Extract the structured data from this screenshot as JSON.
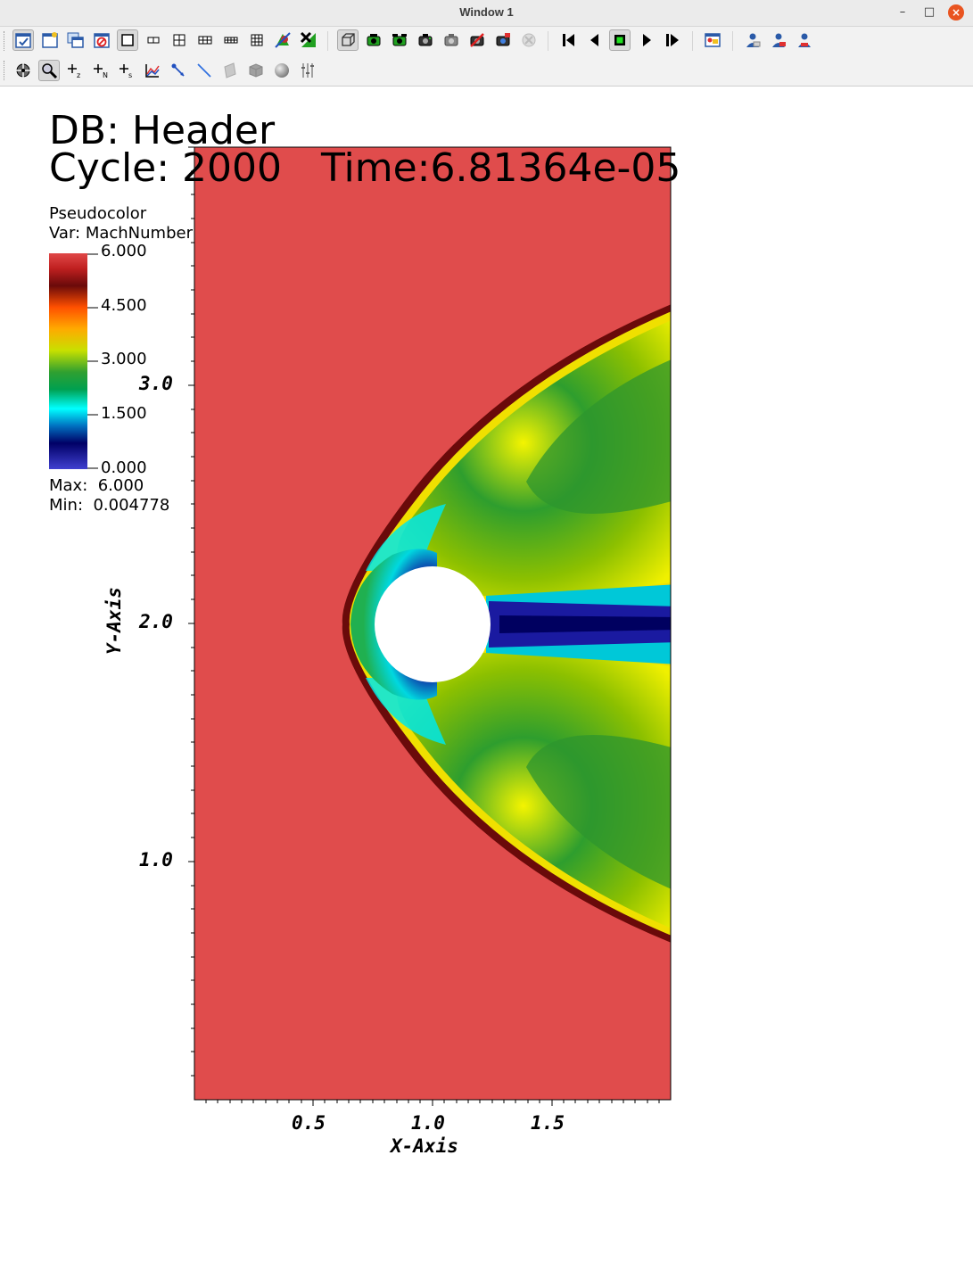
{
  "window": {
    "title": "Window 1"
  },
  "toolbar_top": {
    "icons": [
      "interactive-icon",
      "new-window-icon",
      "clone-window-icon",
      "delete-window-icon",
      "layout-1x1-icon",
      "layout-1x2-icon",
      "layout-2x2-icon",
      "layout-3x2-icon",
      "layout-2x4-icon",
      "layout-3x3-icon",
      "lock-view-icon",
      "lock-time-icon",
      "3d-view-icon",
      "camera-green-icon",
      "camera-multi-icon",
      "camera-icon",
      "camera-gray-icon",
      "camera-stop-icon",
      "camera-record-icon",
      "disabled-icon",
      "rewind-icon",
      "step-back-icon",
      "stop-icon",
      "play-icon",
      "step-forward-icon",
      "image-icon",
      "user-1-icon",
      "user-2-icon",
      "user-3-icon"
    ]
  },
  "toolbar_bottom": {
    "labels": {
      "plus_z": "z",
      "plus_n": "N",
      "plus_s": "s"
    }
  },
  "plot": {
    "db_label": "DB: Header",
    "cycle_label": "Cycle: 2000",
    "time_label": "Time:6.81364e-05",
    "legend_type": "Pseudocolor",
    "legend_var": "Var: MachNumber",
    "ticks": [
      "6.000",
      "4.500",
      "3.000",
      "1.500",
      "0.000"
    ],
    "max_label": "Max:  6.000",
    "min_label": "Min:  0.004778",
    "x_axis_label": "X-Axis",
    "y_axis_label": "Y-Axis",
    "x_ticks": [
      "0.5",
      "1.0",
      "1.5"
    ],
    "y_ticks": [
      "3.0",
      "2.0",
      "1.0"
    ],
    "colors": {
      "freestream": "#e04a4a",
      "shock": "#6a0a0a",
      "green": "#2aa02a",
      "yellow": "#f0f000",
      "cyan": "#00e8e8",
      "blue": "#101090"
    }
  }
}
